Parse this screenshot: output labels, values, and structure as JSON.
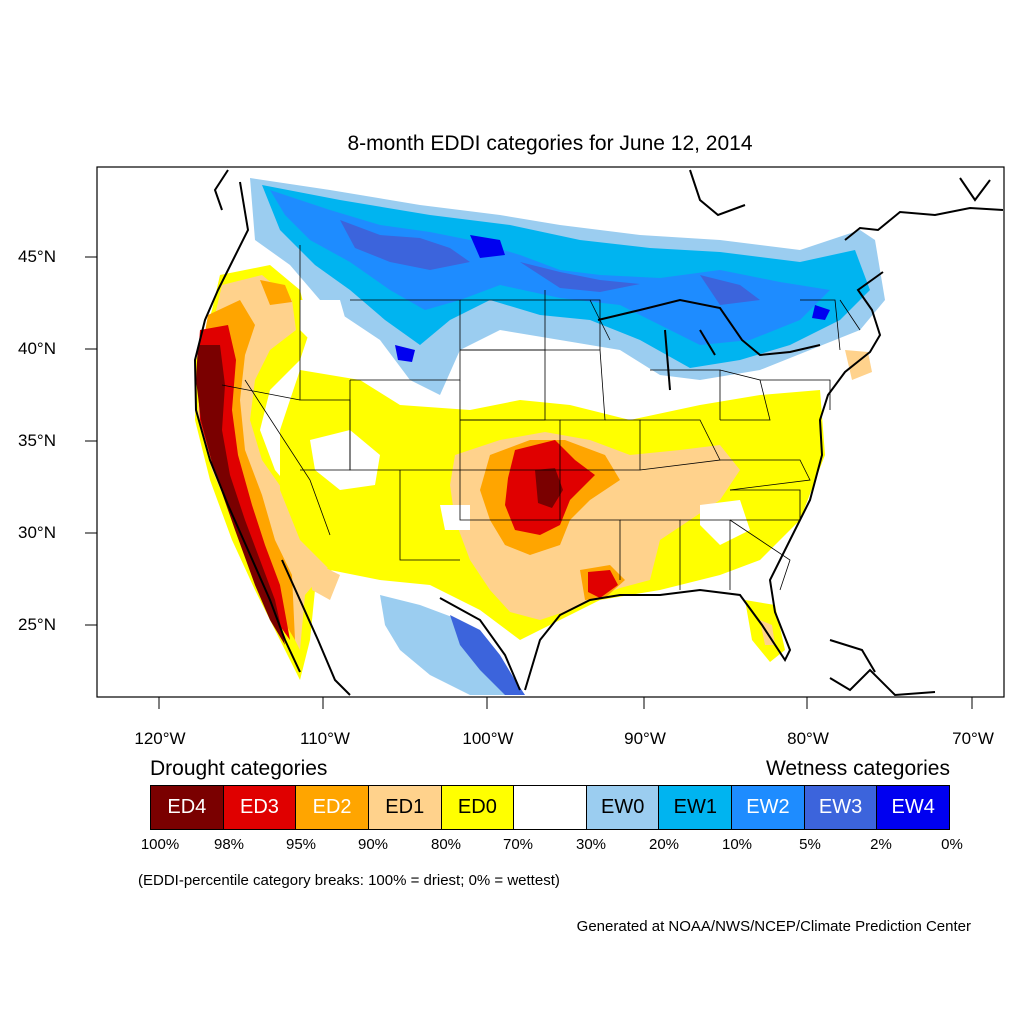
{
  "title": "8-month EDDI categories for June 12, 2014",
  "lat_labels": [
    "45°N",
    "40°N",
    "35°N",
    "30°N",
    "25°N"
  ],
  "lon_labels": [
    "120°W",
    "110°W",
    "100°W",
    "90°W",
    "80°W",
    "70°W"
  ],
  "legend": {
    "drought_heading": "Drought categories",
    "wetness_heading": "Wetness categories",
    "categories": [
      {
        "label": "ED4",
        "color": "#7a0000",
        "text_color": "#ffffff"
      },
      {
        "label": "ED3",
        "color": "#e00000",
        "text_color": "#ffffff"
      },
      {
        "label": "ED2",
        "color": "#ffa500",
        "text_color": "#ffffff"
      },
      {
        "label": "ED1",
        "color": "#ffd28c",
        "text_color": "#000000"
      },
      {
        "label": "ED0",
        "color": "#ffff00",
        "text_color": "#000000"
      },
      {
        "label": "",
        "color": "#ffffff",
        "text_color": "#000000"
      },
      {
        "label": "EW0",
        "color": "#9bcdf0",
        "text_color": "#000000"
      },
      {
        "label": "EW1",
        "color": "#00b4f0",
        "text_color": "#000000"
      },
      {
        "label": "EW2",
        "color": "#1e8cff",
        "text_color": "#ffffff"
      },
      {
        "label": "EW3",
        "color": "#3c64dc",
        "text_color": "#ffffff"
      },
      {
        "label": "EW4",
        "color": "#0000f0",
        "text_color": "#ffffff"
      }
    ],
    "breaks": [
      "100%",
      "98%",
      "95%",
      "90%",
      "80%",
      "70%",
      "30%",
      "20%",
      "10%",
      "5%",
      "2%",
      "0%"
    ]
  },
  "note": "(EDDI-percentile category breaks: 100% = driest; 0% = wettest)",
  "credit": "Generated at NOAA/NWS/NCEP/Climate Prediction Center"
}
